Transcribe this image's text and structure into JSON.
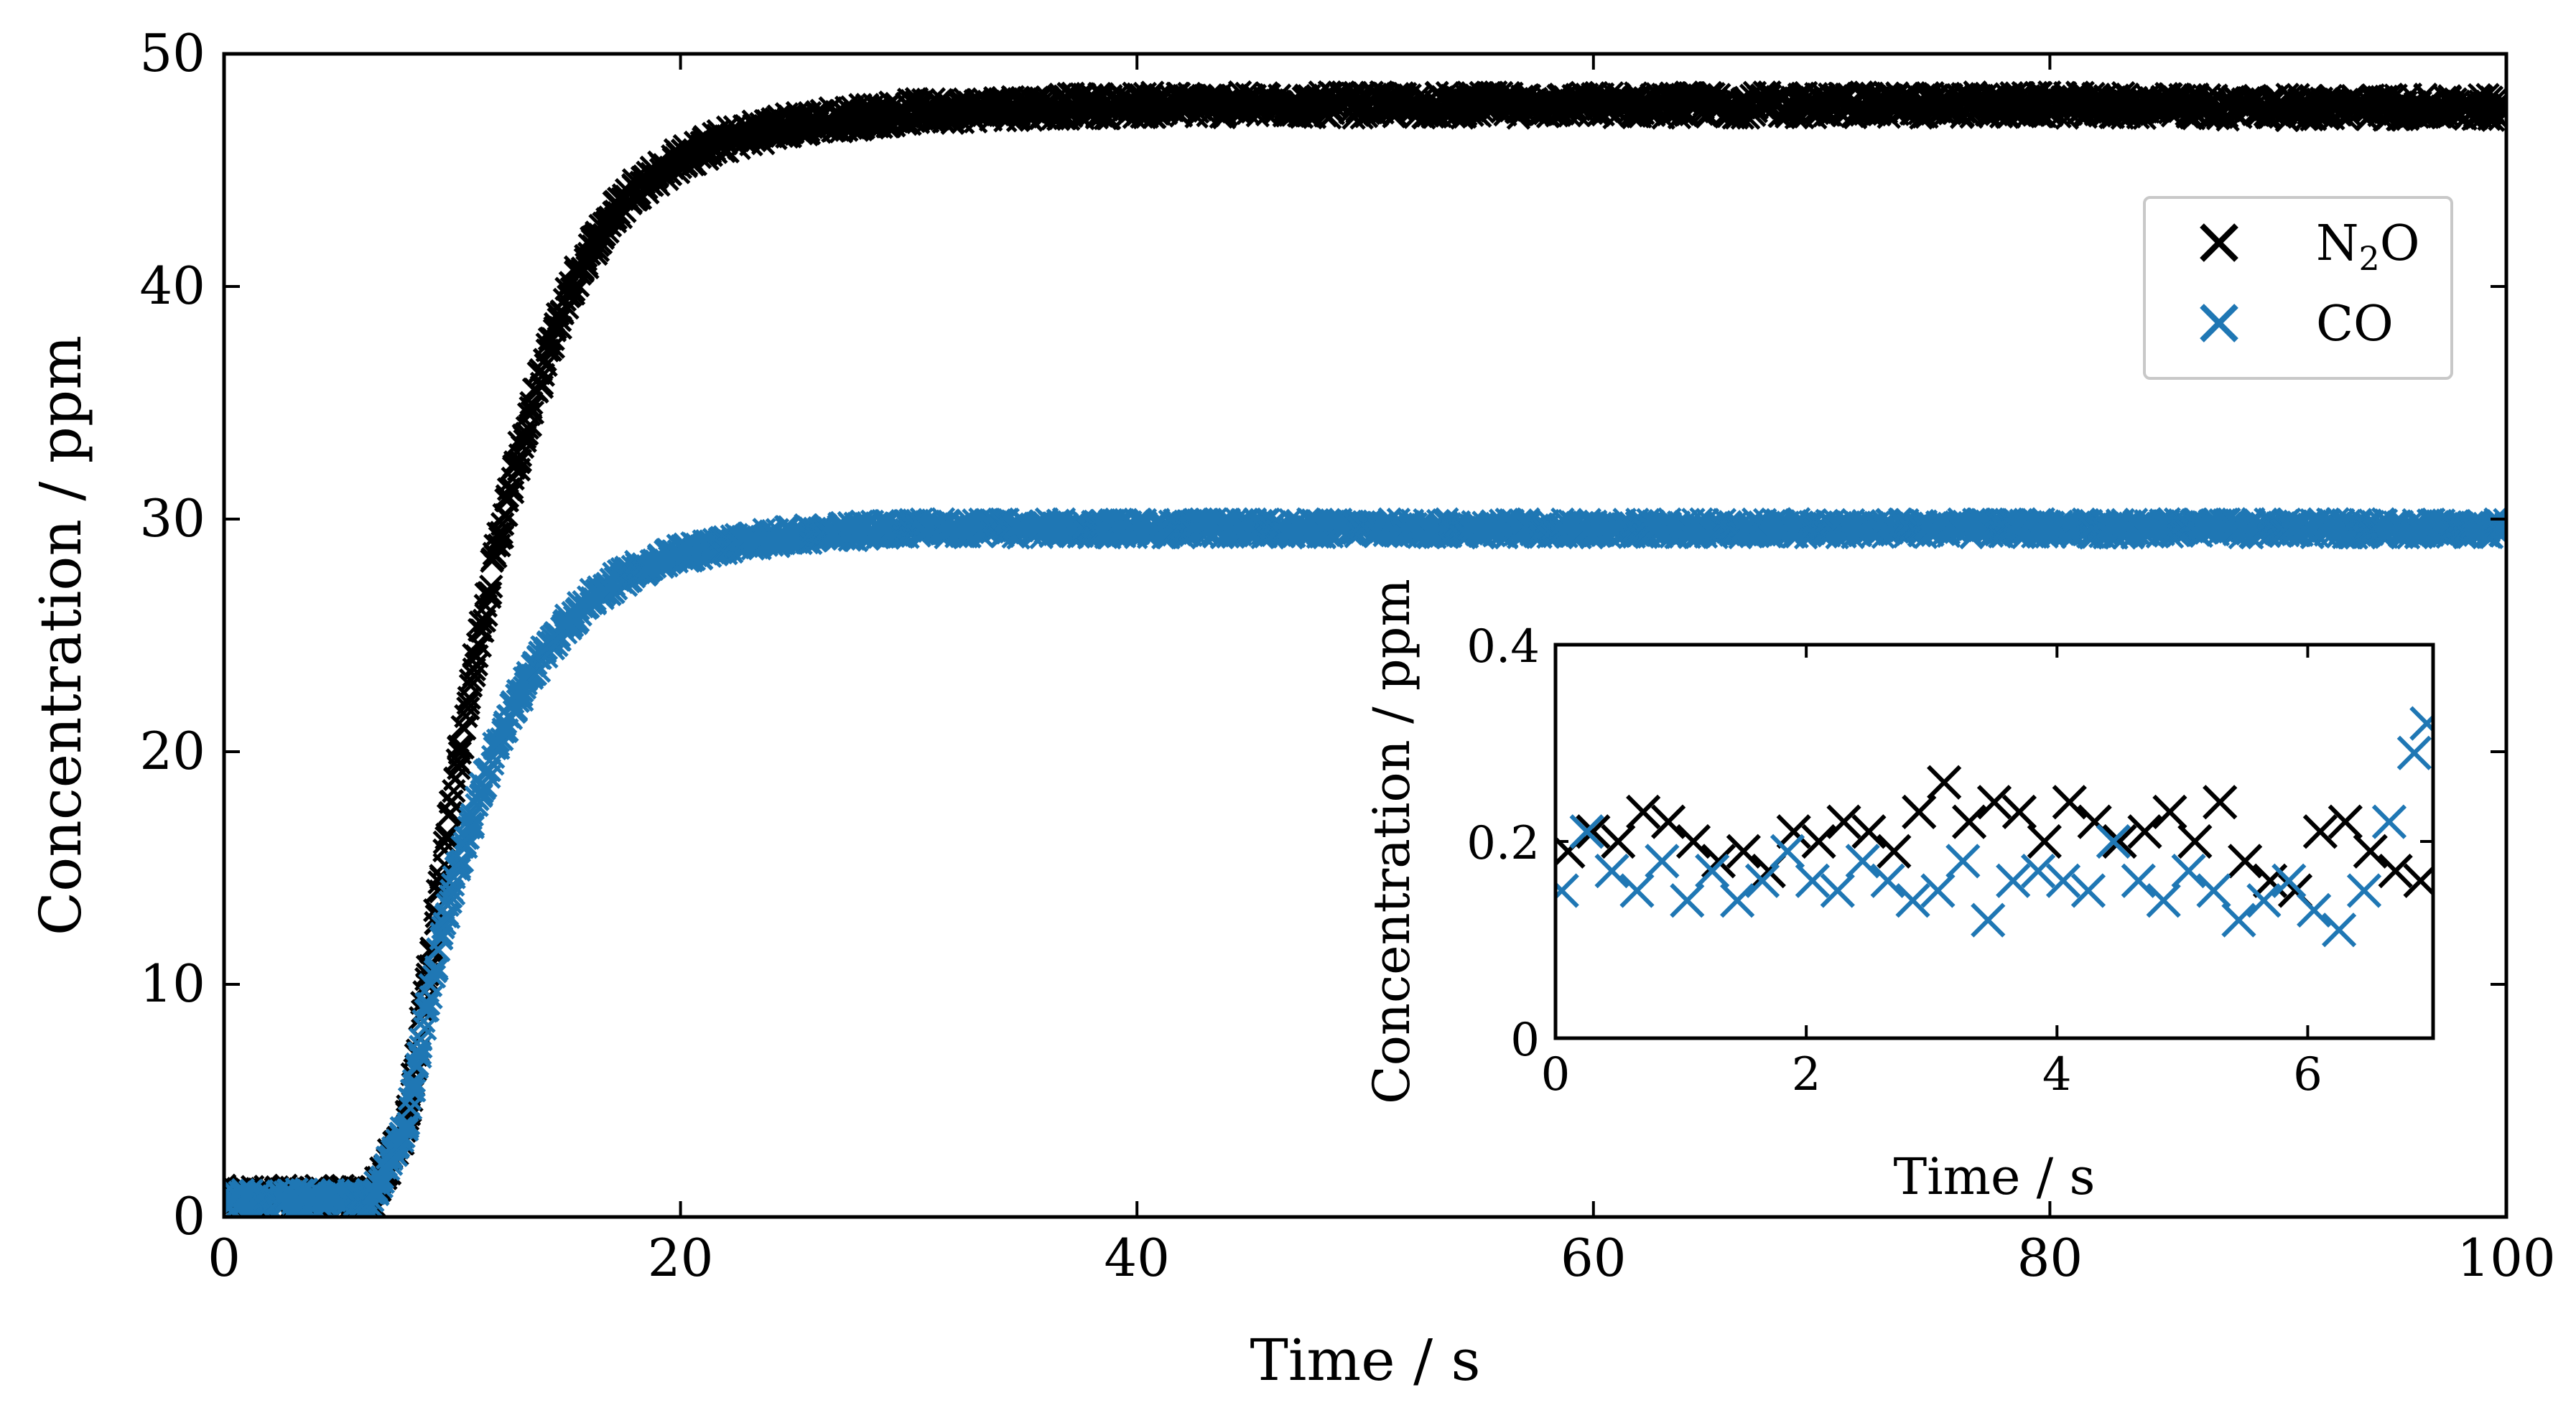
{
  "chart_data": [
    {
      "id": "main",
      "type": "scatter",
      "xlabel": "Time / s",
      "ylabel": "Concentration / ppm",
      "xlim": [
        0,
        100
      ],
      "ylim": [
        0,
        50
      ],
      "xticks": [
        0,
        20,
        40,
        60,
        80,
        100
      ],
      "yticks": [
        0,
        10,
        20,
        30,
        40,
        50
      ],
      "legend": {
        "location": "upper-right",
        "entries": [
          {
            "name": "N2O",
            "label_main": "N",
            "label_sub": "2",
            "label_end": "O",
            "color": "#000000"
          },
          {
            "name": "CO",
            "label_main": "CO",
            "color": "#1f77b4"
          }
        ]
      },
      "marker": "x",
      "series": [
        {
          "name": "N2O",
          "color": "#000000",
          "x": [
            0,
            4,
            6.5,
            8,
            9,
            10,
            11,
            12,
            13,
            14,
            15,
            16,
            17,
            18,
            20,
            22,
            24,
            26,
            28,
            30,
            35,
            40,
            50,
            60,
            70,
            80,
            90,
            100
          ],
          "y": [
            0.8,
            0.8,
            0.8,
            4,
            11,
            18,
            24,
            29,
            33,
            36.5,
            39.5,
            41.5,
            43,
            44.2,
            45.5,
            46.3,
            46.8,
            47.1,
            47.3,
            47.5,
            47.7,
            47.8,
            47.8,
            47.8,
            47.8,
            47.8,
            47.7,
            47.7
          ]
        },
        {
          "name": "CO",
          "color": "#1f77b4",
          "x": [
            0,
            4,
            6.5,
            8,
            9,
            10,
            11,
            12,
            13,
            14,
            15,
            16,
            17,
            18,
            20,
            22,
            24,
            26,
            28,
            30,
            35,
            40,
            50,
            60,
            70,
            80,
            90,
            100
          ],
          "y": [
            0.8,
            0.8,
            0.8,
            4,
            9.5,
            14,
            17.5,
            20.5,
            22.5,
            24.2,
            25.5,
            26.5,
            27.2,
            27.8,
            28.5,
            28.9,
            29.2,
            29.4,
            29.5,
            29.6,
            29.6,
            29.6,
            29.6,
            29.6,
            29.6,
            29.6,
            29.6,
            29.6
          ]
        }
      ]
    },
    {
      "id": "inset",
      "type": "scatter",
      "xlabel": "Time / s",
      "ylabel": "Concentration / ppm",
      "xlim": [
        0,
        7
      ],
      "ylim": [
        0,
        0.4
      ],
      "xticks": [
        0,
        2,
        4,
        6
      ],
      "yticks": [
        0,
        0.2,
        0.4
      ],
      "marker": "x",
      "series": [
        {
          "name": "N2O",
          "color": "#000000",
          "x": [
            0.1,
            0.3,
            0.5,
            0.7,
            0.9,
            1.1,
            1.3,
            1.5,
            1.7,
            1.9,
            2.1,
            2.3,
            2.5,
            2.7,
            2.9,
            3.1,
            3.3,
            3.5,
            3.7,
            3.9,
            4.1,
            4.3,
            4.5,
            4.7,
            4.9,
            5.1,
            5.3,
            5.5,
            5.7,
            5.9,
            6.1,
            6.3,
            6.5,
            6.7,
            6.9
          ],
          "y": [
            0.19,
            0.21,
            0.2,
            0.23,
            0.22,
            0.2,
            0.18,
            0.19,
            0.17,
            0.21,
            0.2,
            0.22,
            0.21,
            0.19,
            0.23,
            0.26,
            0.22,
            0.24,
            0.23,
            0.2,
            0.24,
            0.22,
            0.2,
            0.21,
            0.23,
            0.2,
            0.24,
            0.18,
            0.16,
            0.15,
            0.21,
            0.22,
            0.19,
            0.17,
            0.16
          ]
        },
        {
          "name": "CO",
          "color": "#1f77b4",
          "x": [
            0.05,
            0.25,
            0.45,
            0.65,
            0.85,
            1.05,
            1.25,
            1.45,
            1.65,
            1.85,
            2.05,
            2.25,
            2.45,
            2.65,
            2.85,
            3.05,
            3.25,
            3.45,
            3.65,
            3.85,
            4.05,
            4.25,
            4.45,
            4.65,
            4.85,
            5.05,
            5.25,
            5.45,
            5.65,
            5.85,
            6.05,
            6.25,
            6.45,
            6.65,
            6.85,
            6.95
          ],
          "y": [
            0.15,
            0.21,
            0.17,
            0.15,
            0.18,
            0.14,
            0.17,
            0.14,
            0.16,
            0.19,
            0.16,
            0.15,
            0.18,
            0.16,
            0.14,
            0.15,
            0.18,
            0.12,
            0.16,
            0.17,
            0.16,
            0.15,
            0.2,
            0.16,
            0.14,
            0.17,
            0.15,
            0.12,
            0.14,
            0.16,
            0.13,
            0.11,
            0.15,
            0.22,
            0.29,
            0.32
          ]
        }
      ]
    }
  ]
}
